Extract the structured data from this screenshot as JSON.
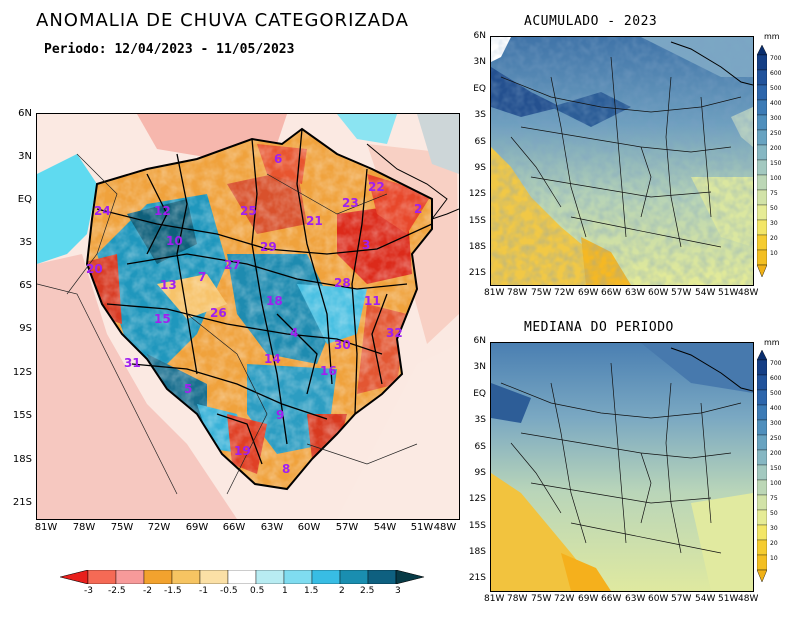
{
  "title": "ANOMALIA DE CHUVA CATEGORIZADA",
  "period": "Periodo: 12/04/2023 - 11/05/2023",
  "right_titles": {
    "top": "ACUMULADO - 2023",
    "bottom": "MEDIANA DO PERIODO"
  },
  "unit": "mm",
  "main_map": {
    "lat_ticks": [
      "6N",
      "3N",
      "EQ",
      "3S",
      "6S",
      "9S",
      "12S",
      "15S",
      "18S",
      "21S"
    ],
    "lon_ticks": [
      "81W",
      "78W",
      "75W",
      "72W",
      "69W",
      "66W",
      "63W",
      "60W",
      "57W",
      "54W",
      "51W",
      "48W"
    ]
  },
  "small_map": {
    "lat_ticks": [
      "6N",
      "3N",
      "EQ",
      "3S",
      "6S",
      "9S",
      "12S",
      "15S",
      "18S",
      "21S"
    ],
    "lon_ticks": [
      "81W",
      "78W",
      "75W",
      "72W",
      "69W",
      "66W",
      "63W",
      "60W",
      "57W",
      "54W",
      "51W",
      "48W"
    ]
  },
  "basins": [
    {
      "id": "6"
    },
    {
      "id": "22"
    },
    {
      "id": "23"
    },
    {
      "id": "24"
    },
    {
      "id": "12"
    },
    {
      "id": "25"
    },
    {
      "id": "21"
    },
    {
      "id": "2"
    },
    {
      "id": "10"
    },
    {
      "id": "29"
    },
    {
      "id": "3"
    },
    {
      "id": "20"
    },
    {
      "id": "7"
    },
    {
      "id": "27"
    },
    {
      "id": "28"
    },
    {
      "id": "13"
    },
    {
      "id": "18"
    },
    {
      "id": "11"
    },
    {
      "id": "15"
    },
    {
      "id": "26"
    },
    {
      "id": "4"
    },
    {
      "id": "32"
    },
    {
      "id": "30"
    },
    {
      "id": "31"
    },
    {
      "id": "14"
    },
    {
      "id": "16"
    },
    {
      "id": "5"
    },
    {
      "id": "9"
    },
    {
      "id": "19"
    },
    {
      "id": "8"
    }
  ],
  "anomaly_colorbar": {
    "labels": [
      "-3",
      "-2.5",
      "-2",
      "-1.5",
      "-1",
      "-0.5",
      "0.5",
      "1",
      "1.5",
      "2",
      "2.5",
      "3"
    ],
    "colors": [
      "#e8201c",
      "#f56a55",
      "#f79a9a",
      "#f2a22e",
      "#f6c462",
      "#fbe0a6",
      "#ffffff",
      "#b8ecf2",
      "#7fdcf0",
      "#38bde4",
      "#1a8eb0",
      "#0e6080",
      "#073a46"
    ]
  },
  "precip_colorbar": {
    "labels": [
      "700",
      "600",
      "500",
      "400",
      "300",
      "250",
      "200",
      "150",
      "100",
      "75",
      "50",
      "30",
      "20",
      "10"
    ],
    "colors": [
      "#0a2e6e",
      "#153f86",
      "#21539c",
      "#2d66ac",
      "#3c7bb6",
      "#4f8fbd",
      "#68a3c1",
      "#86b7c3",
      "#a3c9c0",
      "#bcd7b6",
      "#d2e3a8",
      "#e6ec96",
      "#f3e667",
      "#f5cc30",
      "#f0b116"
    ]
  }
}
